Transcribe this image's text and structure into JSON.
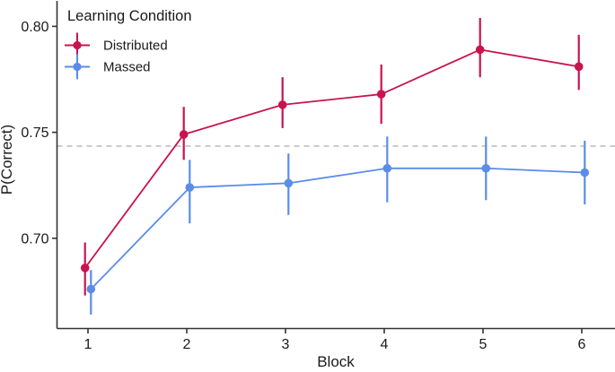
{
  "chart_data": {
    "type": "line",
    "title": "",
    "xlabel": "Block",
    "ylabel": "P(Correct)",
    "legend_title": "Learning Condition",
    "legend_position": "top-left-inside",
    "x": [
      1,
      2,
      3,
      4,
      5,
      6
    ],
    "xtick_labels": [
      "1",
      "2",
      "3",
      "4",
      "5",
      "6"
    ],
    "ytick_values": [
      0.7,
      0.75,
      0.8
    ],
    "ytick_labels": [
      "0.70",
      "0.75",
      "0.80"
    ],
    "ylim": [
      0.657,
      0.8125
    ],
    "grid": false,
    "reference_line": {
      "y": 0.7435,
      "style": "dashed",
      "color": "#ABABAB"
    },
    "axis_color": "#333333",
    "text_color": "#1a1a1a",
    "series": [
      {
        "name": "Distributed",
        "color": "#C8144E",
        "marker": "circle-with-error-bar",
        "values": [
          0.686,
          0.749,
          0.763,
          0.768,
          0.789,
          0.781
        ],
        "ci_low": [
          0.673,
          0.737,
          0.752,
          0.754,
          0.776,
          0.77
        ],
        "ci_high": [
          0.698,
          0.762,
          0.776,
          0.782,
          0.804,
          0.796
        ]
      },
      {
        "name": "Massed",
        "color": "#5B8CE8",
        "marker": "circle-with-error-bar",
        "values": [
          0.676,
          0.724,
          0.726,
          0.733,
          0.733,
          0.731
        ],
        "ci_low": [
          0.664,
          0.707,
          0.711,
          0.717,
          0.718,
          0.716
        ],
        "ci_high": [
          0.685,
          0.737,
          0.74,
          0.748,
          0.748,
          0.746
        ]
      }
    ]
  }
}
